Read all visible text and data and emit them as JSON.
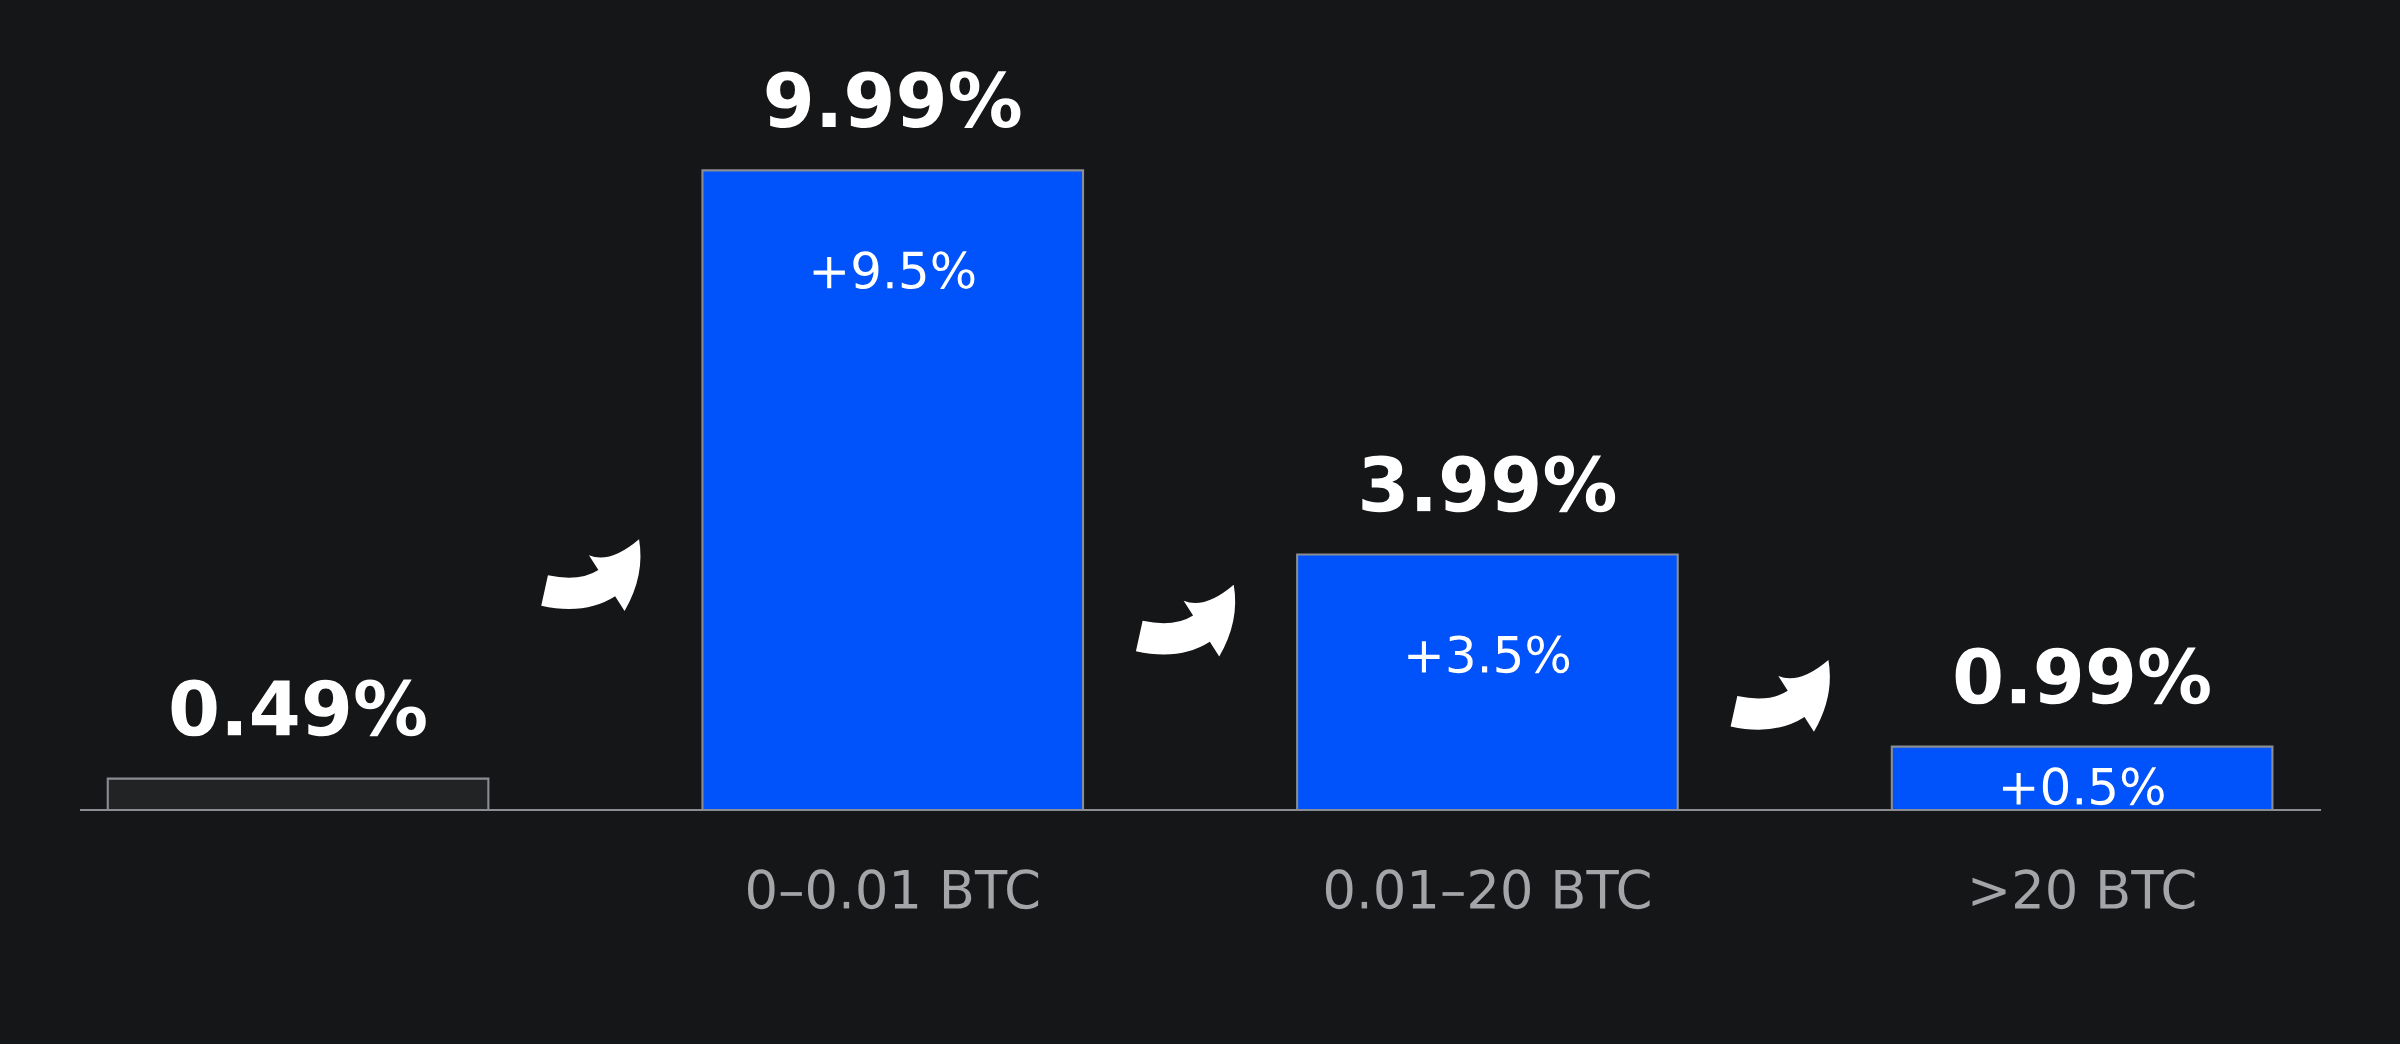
{
  "chart_data": {
    "type": "bar",
    "categories": [
      null,
      "0–0.01 BTC",
      "0.01–20 BTC",
      ">20 BTC"
    ],
    "values": [
      0.49,
      9.99,
      3.99,
      0.99
    ],
    "colors": [
      "#222325",
      "#0052fa",
      "#0052fa",
      "#0052fa"
    ],
    "value_labels": [
      "0.49%",
      "9.99%",
      "3.99%",
      "0.99%"
    ],
    "annotations": [
      {
        "text": "+9.5%",
        "x": "0–0.01 BTC",
        "y": 9.99
      },
      {
        "text": "+3.5%",
        "x": "0.01–20 BTC",
        "y": 3.99
      },
      {
        "text": "+0.5%",
        "x": ">20 BTC",
        "y": 0.99
      }
    ],
    "tick_labels": "x"
  }
}
